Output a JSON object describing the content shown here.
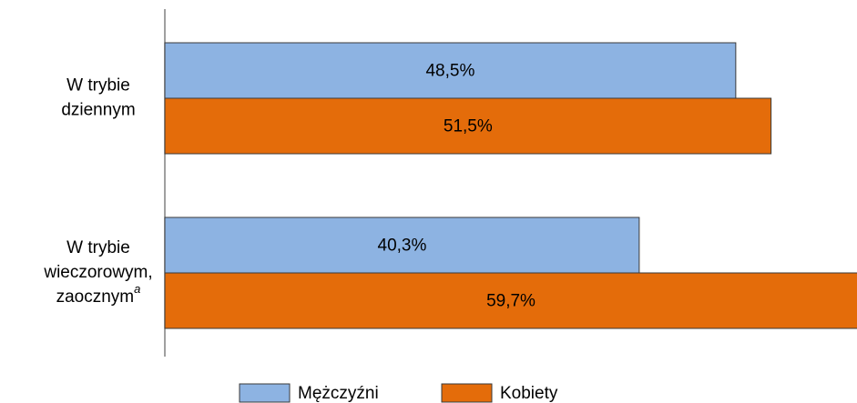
{
  "chart_data": {
    "type": "bar",
    "orientation": "horizontal",
    "categories": [
      "W trybie\ndziennym",
      "W trybie\nwieczorowym,\nzaocznym"
    ],
    "category_notes": [
      null,
      "a"
    ],
    "series": [
      {
        "name": "Mężczyźni",
        "color": "#8db3e2",
        "values": [
          48.5,
          40.3
        ],
        "value_labels": [
          "48,5%",
          "40,3%"
        ]
      },
      {
        "name": "Kobiety",
        "color": "#e46c0a",
        "values": [
          51.5,
          59.7
        ],
        "value_labels": [
          "51,5%",
          "59,7%"
        ]
      }
    ],
    "xlim": [
      0,
      58.8
    ],
    "legend": "bottom"
  }
}
